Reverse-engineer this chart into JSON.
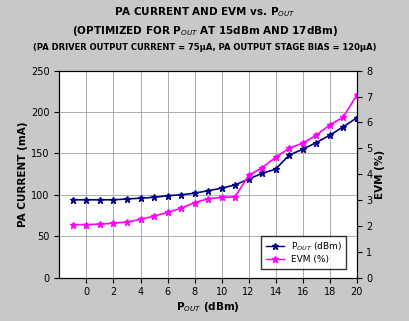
{
  "title_line1": "PA CURRENT AND EVM vs. P$_{OUT}$",
  "title_line2": "(OPTIMIZED FOR P$_{OUT}$ AT 15dBm AND 17dBm)",
  "title_line3": "(PA DRIVER OUTPUT CURRENT = 75μA, PA OUTPUT STAGE BIAS = 120μA)",
  "xlabel": "P$_{OUT}$ (dBm)",
  "ylabel_left": "PA CURRENT (mA)",
  "ylabel_right": "EVM (%)",
  "x_data": [
    -1,
    0,
    1,
    2,
    3,
    4,
    5,
    6,
    7,
    8,
    9,
    10,
    11,
    12,
    13,
    14,
    15,
    16,
    17,
    18,
    19,
    20
  ],
  "pa_current": [
    94,
    94,
    94,
    94,
    95,
    96,
    97,
    99,
    100,
    102,
    105,
    108,
    112,
    119,
    126,
    131,
    148,
    155,
    163,
    172,
    182,
    193
  ],
  "evm": [
    2.05,
    2.05,
    2.07,
    2.1,
    2.15,
    2.25,
    2.38,
    2.52,
    2.68,
    2.9,
    3.05,
    3.1,
    3.12,
    3.95,
    4.25,
    4.65,
    5.0,
    5.2,
    5.5,
    5.9,
    6.2,
    7.05
  ],
  "pa_color": "#00008B",
  "evm_color": "#FF00FF",
  "xlim": [
    -2,
    20
  ],
  "ylim_left": [
    0,
    250
  ],
  "ylim_right": [
    0,
    8
  ],
  "xticks": [
    0,
    2,
    4,
    6,
    8,
    10,
    12,
    14,
    16,
    18,
    20
  ],
  "yticks_left": [
    0,
    50,
    100,
    150,
    200,
    250
  ],
  "yticks_right": [
    0,
    1,
    2,
    3,
    4,
    5,
    6,
    7,
    8
  ],
  "legend_label_pa": "P$_{OUT}$ (dBm)",
  "legend_label_evm": "EVM (%)",
  "bg_color": "#C8C8C8",
  "plot_bg_color": "#FFFFFF",
  "grid_color": "#A0A0A0",
  "title_fontsize": 7.5,
  "tick_fontsize": 7,
  "label_fontsize": 7.5
}
